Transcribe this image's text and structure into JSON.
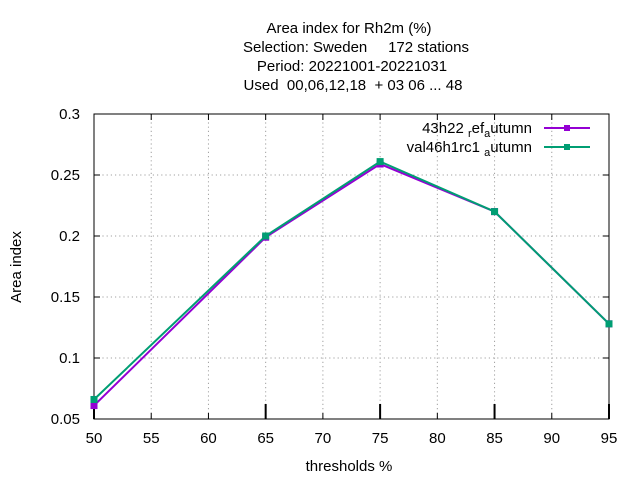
{
  "chart_data": {
    "type": "line",
    "title_lines": [
      "Area index  for Rh2m (%)",
      "Selection: Sweden     172 stations",
      "Period: 20221001-20221031",
      "Used  00,06,12,18  + 03 06 ... 48"
    ],
    "xlabel": "thresholds %",
    "ylabel": "Area index",
    "xlim": [
      50,
      95
    ],
    "ylim": [
      0.05,
      0.3
    ],
    "xticks": [
      "50",
      "55",
      "60",
      "65",
      "70",
      "75",
      "80",
      "85",
      "90",
      "95"
    ],
    "yticks": [
      "0.05",
      "0.1",
      "0.15",
      "0.2",
      "0.25",
      "0.3"
    ],
    "grid": true,
    "legend_position": "top-right",
    "x": [
      50,
      65,
      75,
      85,
      95
    ],
    "series": [
      {
        "name_parts": [
          "43h22",
          "r",
          "ef",
          "a",
          "utumn"
        ],
        "color": "#9400d3",
        "values": [
          0.061,
          0.199,
          0.259,
          0.22,
          0.128
        ]
      },
      {
        "name_parts": [
          "val46h1rc1",
          "a",
          "utumn"
        ],
        "color": "#009e73",
        "values": [
          0.066,
          0.2,
          0.261,
          0.22,
          0.128
        ]
      }
    ]
  }
}
